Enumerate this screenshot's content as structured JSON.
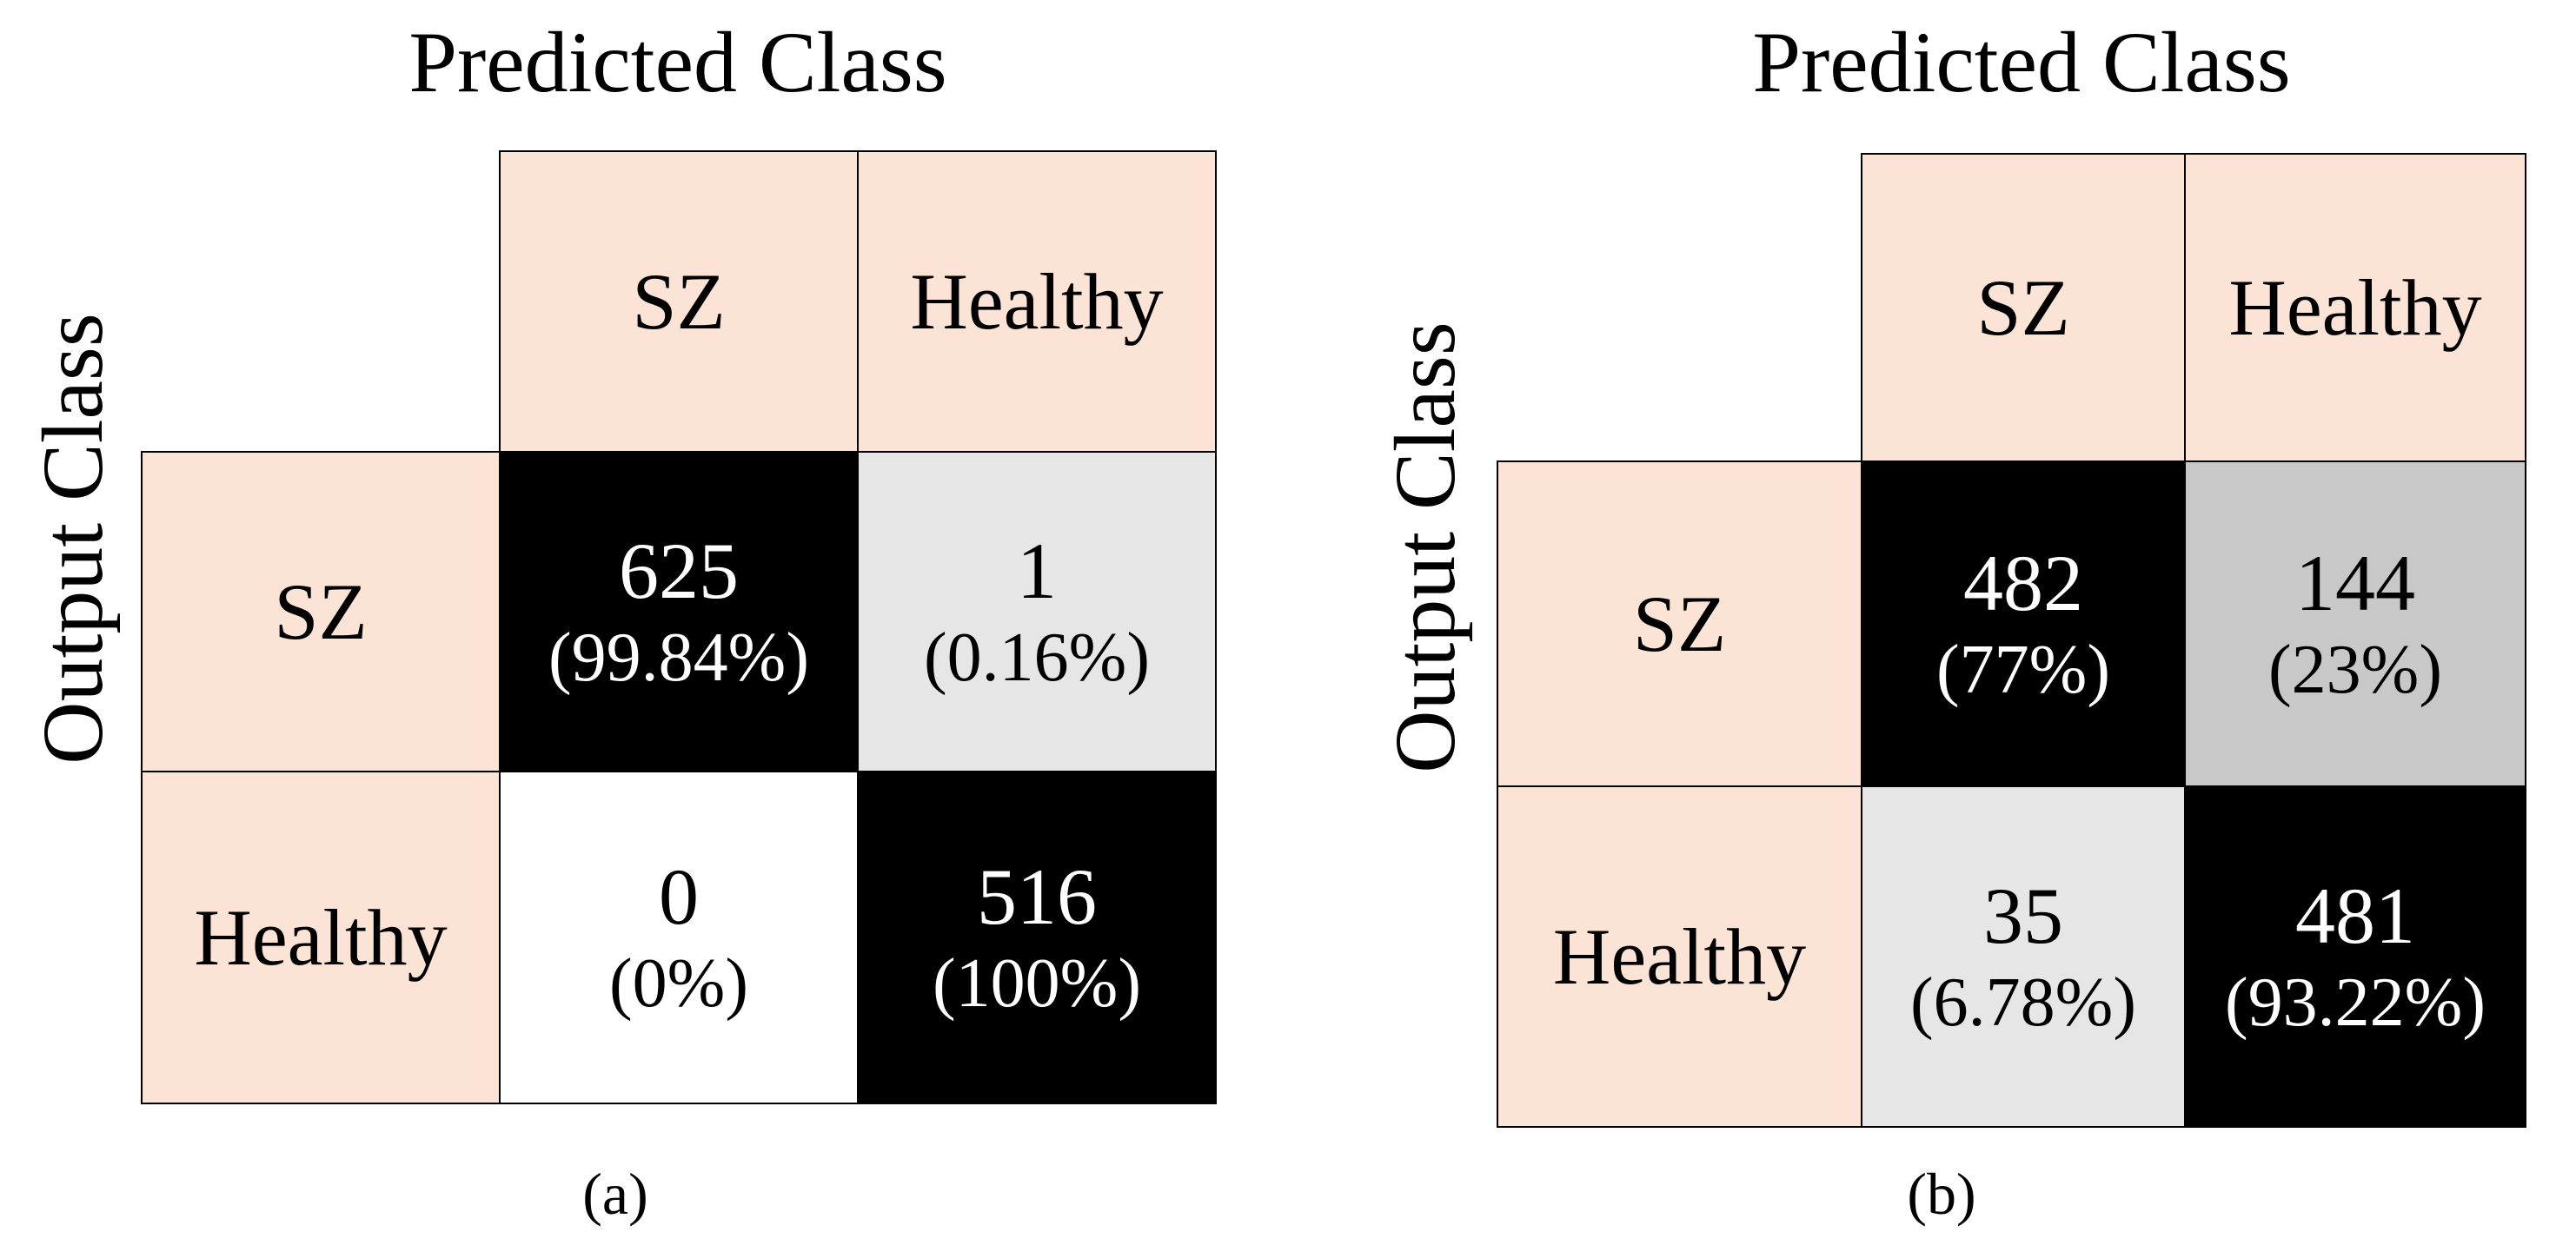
{
  "chart_data": [
    {
      "type": "table",
      "caption": "(a)",
      "title": "Predicted Class",
      "ylabel": "Output Class",
      "columns": [
        "SZ",
        "Healthy"
      ],
      "rows": [
        "SZ",
        "Healthy"
      ],
      "cells": [
        [
          {
            "count": "625",
            "pct": "(99.84%)",
            "value": 99.84
          },
          {
            "count": "1",
            "pct": "(0.16%)",
            "value": 0.16
          }
        ],
        [
          {
            "count": "0",
            "pct": "(0%)",
            "value": 0
          },
          {
            "count": "516",
            "pct": "(100%)",
            "value": 100
          }
        ]
      ]
    },
    {
      "type": "table",
      "caption": "(b)",
      "title": "Predicted Class",
      "ylabel": "Output Class",
      "columns": [
        "SZ",
        "Healthy"
      ],
      "rows": [
        "SZ",
        "Healthy"
      ],
      "cells": [
        [
          {
            "count": "482",
            "pct": "(77%)",
            "value": 77
          },
          {
            "count": "144",
            "pct": "(23%)",
            "value": 23
          }
        ],
        [
          {
            "count": "35",
            "pct": "(6.78%)",
            "value": 6.78
          },
          {
            "count": "481",
            "pct": "(93.22%)",
            "value": 93.22
          }
        ]
      ]
    }
  ],
  "colors": {
    "header_fill": "#fbe4d6",
    "high_fill": "#000000",
    "mid_fill": "#c8c8c8",
    "low_fill": "#e6e6e6",
    "zero_fill": "#ffffff"
  }
}
